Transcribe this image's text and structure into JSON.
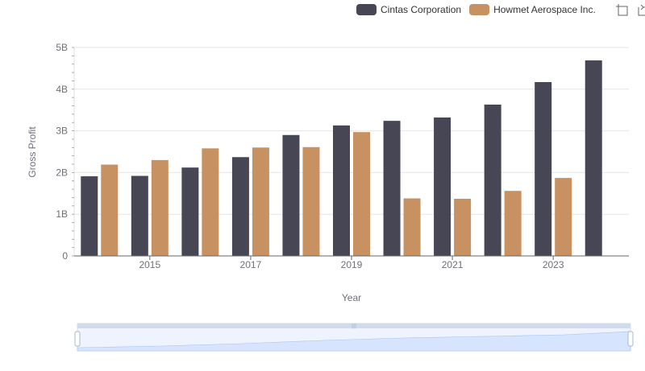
{
  "colors": {
    "cintas": "#464655",
    "howmet": "#c89161",
    "grid": "#e6e6e6",
    "axis": "#666666",
    "zoom_fill": "#d6e4fd",
    "zoom_border": "#d2dbee"
  },
  "legend": {
    "items": [
      {
        "label": "Cintas Corporation",
        "color": "#464655"
      },
      {
        "label": "Howmet Aerospace Inc.",
        "color": "#c89161"
      }
    ]
  },
  "toolbox": {
    "icons": [
      "zoom-icon",
      "restore-icon"
    ]
  },
  "chart_data": {
    "type": "bar",
    "categories": [
      "2014",
      "2015",
      "2016",
      "2017",
      "2018",
      "2019",
      "2020",
      "2021",
      "2022",
      "2023",
      "2024"
    ],
    "x_tick_labels": [
      "2015",
      "2017",
      "2019",
      "2021",
      "2023"
    ],
    "y_tick_labels": [
      "0",
      "1B",
      "2B",
      "3B",
      "4B",
      "5B"
    ],
    "ylim": [
      0,
      5000000000
    ],
    "xlabel": "Year",
    "ylabel": "Gross Profit",
    "grid": true,
    "legend_position": "top-right",
    "series": [
      {
        "name": "Cintas Corporation",
        "color": "#464655",
        "values": [
          1910000000,
          1920000000,
          2120000000,
          2370000000,
          2900000000,
          3130000000,
          3240000000,
          3320000000,
          3630000000,
          4170000000,
          4690000000
        ]
      },
      {
        "name": "Howmet Aerospace Inc.",
        "color": "#c89161",
        "values": [
          2190000000,
          2300000000,
          2580000000,
          2600000000,
          2610000000,
          2970000000,
          1380000000,
          1370000000,
          1560000000,
          1870000000,
          null
        ]
      }
    ]
  }
}
